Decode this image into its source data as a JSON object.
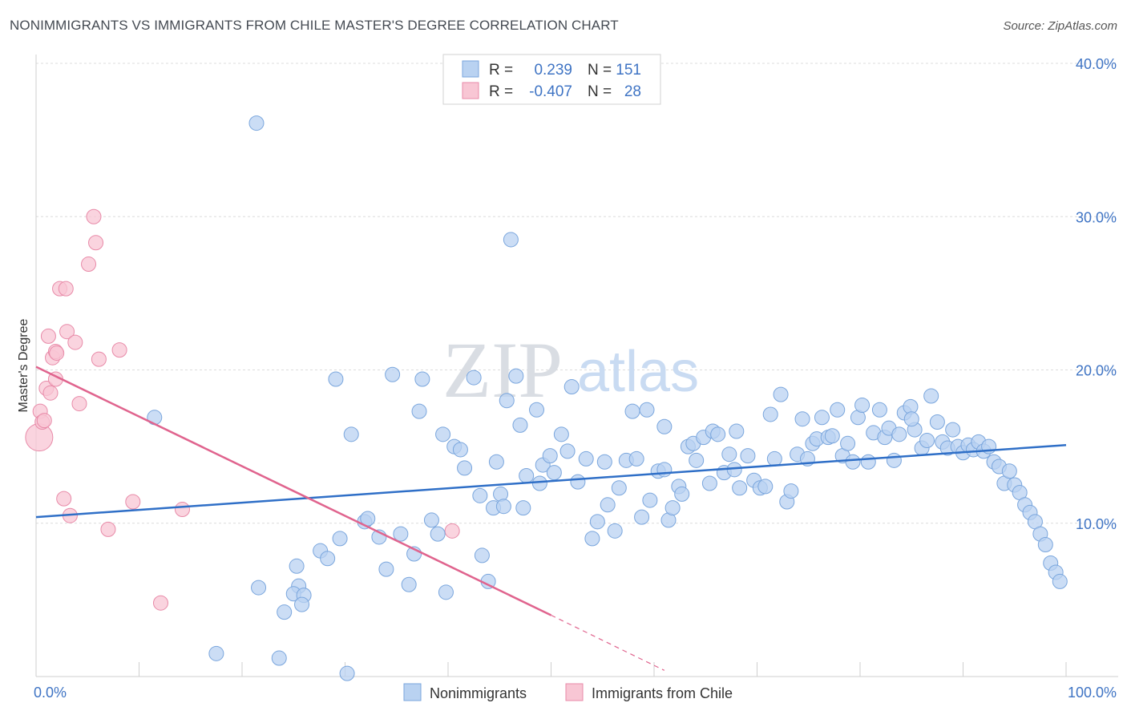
{
  "header": {
    "title": "NONIMMIGRANTS VS IMMIGRANTS FROM CHILE MASTER'S DEGREE CORRELATION CHART",
    "source": "Source: ZipAtlas.com"
  },
  "watermark": {
    "zip": "ZIP",
    "atlas": "atlas"
  },
  "legend": {
    "r_label": "R =",
    "n_label": "N =",
    "rows": [
      {
        "r": "0.239",
        "n": "151"
      },
      {
        "r": "-0.407",
        "n": "28"
      }
    ]
  },
  "colors": {
    "blue_fill": "#b9d2f1",
    "blue_stroke": "#7aa6dd",
    "blue_line": "#2f6fc7",
    "pink_fill": "#f8c6d4",
    "pink_stroke": "#e88aa8",
    "pink_line": "#e0648e",
    "grid": "#dcdcdc",
    "tick_text": "#3f74c4"
  },
  "chart_data": {
    "type": "scatter",
    "title": "NONIMMIGRANTS VS IMMIGRANTS FROM CHILE MASTER'S DEGREE CORRELATION CHART",
    "xlabel": "",
    "ylabel": "Master's Degree",
    "xlim": [
      0,
      100
    ],
    "ylim": [
      0,
      40
    ],
    "x_tick_labels": [
      "0.0%",
      "100.0%"
    ],
    "y_ticks": [
      10,
      20,
      30,
      40
    ],
    "y_tick_labels": [
      "10.0%",
      "20.0%",
      "30.0%",
      "40.0%"
    ],
    "grid": true,
    "legend_position": "top-center",
    "series": [
      {
        "name": "Nonimmigrants",
        "r": 0.239,
        "n": 151,
        "trend": {
          "x": [
            0,
            100
          ],
          "y": [
            10.4,
            15.1
          ]
        },
        "points": [
          [
            21.4,
            36.1
          ],
          [
            46.1,
            28.5
          ],
          [
            11.5,
            16.9
          ],
          [
            17.5,
            1.5
          ],
          [
            23.6,
            1.2
          ],
          [
            30.2,
            0.2
          ],
          [
            21.6,
            5.8
          ],
          [
            24.1,
            4.2
          ],
          [
            25.3,
            7.2
          ],
          [
            25.5,
            5.9
          ],
          [
            25.0,
            5.4
          ],
          [
            26.0,
            5.3
          ],
          [
            25.8,
            4.7
          ],
          [
            27.6,
            8.2
          ],
          [
            28.3,
            7.7
          ],
          [
            29.5,
            9.0
          ],
          [
            30.6,
            15.8
          ],
          [
            29.1,
            19.4
          ],
          [
            34.6,
            19.7
          ],
          [
            37.5,
            19.4
          ],
          [
            31.9,
            10.1
          ],
          [
            32.2,
            10.3
          ],
          [
            33.3,
            9.1
          ],
          [
            34.0,
            7.0
          ],
          [
            35.4,
            9.3
          ],
          [
            36.2,
            6.0
          ],
          [
            36.7,
            8.0
          ],
          [
            37.2,
            17.3
          ],
          [
            38.4,
            10.2
          ],
          [
            39.0,
            9.3
          ],
          [
            39.5,
            15.8
          ],
          [
            39.8,
            5.5
          ],
          [
            40.6,
            15.0
          ],
          [
            41.2,
            14.8
          ],
          [
            41.6,
            13.6
          ],
          [
            42.5,
            19.5
          ],
          [
            43.1,
            11.8
          ],
          [
            43.3,
            7.9
          ],
          [
            43.9,
            6.2
          ],
          [
            44.4,
            11.0
          ],
          [
            44.7,
            14.0
          ],
          [
            45.1,
            11.9
          ],
          [
            45.4,
            11.1
          ],
          [
            45.7,
            18.0
          ],
          [
            46.6,
            19.6
          ],
          [
            47.0,
            16.4
          ],
          [
            47.3,
            11.0
          ],
          [
            47.6,
            13.1
          ],
          [
            48.6,
            17.4
          ],
          [
            48.9,
            12.6
          ],
          [
            49.2,
            13.8
          ],
          [
            49.9,
            14.4
          ],
          [
            50.3,
            13.3
          ],
          [
            51.0,
            15.8
          ],
          [
            51.6,
            14.7
          ],
          [
            52.0,
            18.9
          ],
          [
            52.6,
            12.7
          ],
          [
            53.4,
            14.2
          ],
          [
            54.0,
            9.0
          ],
          [
            54.5,
            10.1
          ],
          [
            55.2,
            14.0
          ],
          [
            55.5,
            11.2
          ],
          [
            56.2,
            9.5
          ],
          [
            56.6,
            12.3
          ],
          [
            57.3,
            14.1
          ],
          [
            57.9,
            17.3
          ],
          [
            58.3,
            14.2
          ],
          [
            58.8,
            10.4
          ],
          [
            59.3,
            17.4
          ],
          [
            59.6,
            11.5
          ],
          [
            60.4,
            13.4
          ],
          [
            61.0,
            16.3
          ],
          [
            61.4,
            10.2
          ],
          [
            61.8,
            11.0
          ],
          [
            62.4,
            12.4
          ],
          [
            62.7,
            11.9
          ],
          [
            63.3,
            15.0
          ],
          [
            63.8,
            15.2
          ],
          [
            64.1,
            14.1
          ],
          [
            64.8,
            15.6
          ],
          [
            65.4,
            12.6
          ],
          [
            65.7,
            16.0
          ],
          [
            66.2,
            15.8
          ],
          [
            66.8,
            13.3
          ],
          [
            67.3,
            14.5
          ],
          [
            67.8,
            13.5
          ],
          [
            68.3,
            12.3
          ],
          [
            69.1,
            14.4
          ],
          [
            69.7,
            12.8
          ],
          [
            70.3,
            12.3
          ],
          [
            70.8,
            12.4
          ],
          [
            71.3,
            17.1
          ],
          [
            71.7,
            14.2
          ],
          [
            72.3,
            18.4
          ],
          [
            72.9,
            11.4
          ],
          [
            73.3,
            12.1
          ],
          [
            73.9,
            14.5
          ],
          [
            74.4,
            16.8
          ],
          [
            74.9,
            14.2
          ],
          [
            75.4,
            15.2
          ],
          [
            75.8,
            15.5
          ],
          [
            76.3,
            16.9
          ],
          [
            76.9,
            15.6
          ],
          [
            77.3,
            15.7
          ],
          [
            77.8,
            17.4
          ],
          [
            78.3,
            14.4
          ],
          [
            78.8,
            15.2
          ],
          [
            79.3,
            14.0
          ],
          [
            79.8,
            16.9
          ],
          [
            80.2,
            17.7
          ],
          [
            80.8,
            14.0
          ],
          [
            81.3,
            15.9
          ],
          [
            81.9,
            17.4
          ],
          [
            82.4,
            15.6
          ],
          [
            82.8,
            16.2
          ],
          [
            83.3,
            14.1
          ],
          [
            83.8,
            15.8
          ],
          [
            84.3,
            17.2
          ],
          [
            84.9,
            17.6
          ],
          [
            85.3,
            16.1
          ],
          [
            86.0,
            14.9
          ],
          [
            86.5,
            15.4
          ],
          [
            86.9,
            18.3
          ],
          [
            87.5,
            16.6
          ],
          [
            88.0,
            15.3
          ],
          [
            88.5,
            14.9
          ],
          [
            89.0,
            16.1
          ],
          [
            89.5,
            15.0
          ],
          [
            90.0,
            14.6
          ],
          [
            90.5,
            15.1
          ],
          [
            91.0,
            14.8
          ],
          [
            91.5,
            15.3
          ],
          [
            92.0,
            14.7
          ],
          [
            92.5,
            15.0
          ],
          [
            93.0,
            14.0
          ],
          [
            93.5,
            13.7
          ],
          [
            94.0,
            12.6
          ],
          [
            94.5,
            13.4
          ],
          [
            95.0,
            12.5
          ],
          [
            95.5,
            12.0
          ],
          [
            96.0,
            11.2
          ],
          [
            96.5,
            10.7
          ],
          [
            97.0,
            10.1
          ],
          [
            97.5,
            9.3
          ],
          [
            98.0,
            8.6
          ],
          [
            98.5,
            7.4
          ],
          [
            99.0,
            6.8
          ],
          [
            99.4,
            6.2
          ],
          [
            61.0,
            13.5
          ],
          [
            68.0,
            16.0
          ],
          [
            85.0,
            16.8
          ]
        ]
      },
      {
        "name": "Immigrants from Chile",
        "r": -0.407,
        "n": 28,
        "trend": {
          "x": [
            0,
            50
          ],
          "y": [
            20.2,
            4.0
          ],
          "dashed_to": {
            "x": [
              50,
              61
            ],
            "y": [
              4.0,
              0.4
            ]
          }
        },
        "points": [
          [
            0.3,
            15.6
          ],
          [
            0.4,
            17.3
          ],
          [
            0.6,
            16.6
          ],
          [
            0.8,
            16.7
          ],
          [
            1.0,
            18.8
          ],
          [
            1.2,
            22.2
          ],
          [
            1.4,
            18.5
          ],
          [
            1.6,
            20.8
          ],
          [
            1.9,
            21.2
          ],
          [
            1.9,
            19.4
          ],
          [
            2.0,
            21.1
          ],
          [
            2.3,
            25.3
          ],
          [
            2.9,
            25.3
          ],
          [
            3.0,
            22.5
          ],
          [
            3.8,
            21.8
          ],
          [
            4.2,
            17.8
          ],
          [
            2.7,
            11.6
          ],
          [
            3.3,
            10.5
          ],
          [
            5.1,
            26.9
          ],
          [
            5.6,
            30.0
          ],
          [
            5.8,
            28.3
          ],
          [
            6.1,
            20.7
          ],
          [
            7.0,
            9.6
          ],
          [
            8.1,
            21.3
          ],
          [
            9.4,
            11.4
          ],
          [
            12.1,
            4.8
          ],
          [
            14.2,
            10.9
          ],
          [
            40.4,
            9.5
          ]
        ]
      }
    ]
  },
  "bottom_legend": {
    "items": [
      {
        "label": "Nonimmigrants"
      },
      {
        "label": "Immigrants from Chile"
      }
    ]
  }
}
